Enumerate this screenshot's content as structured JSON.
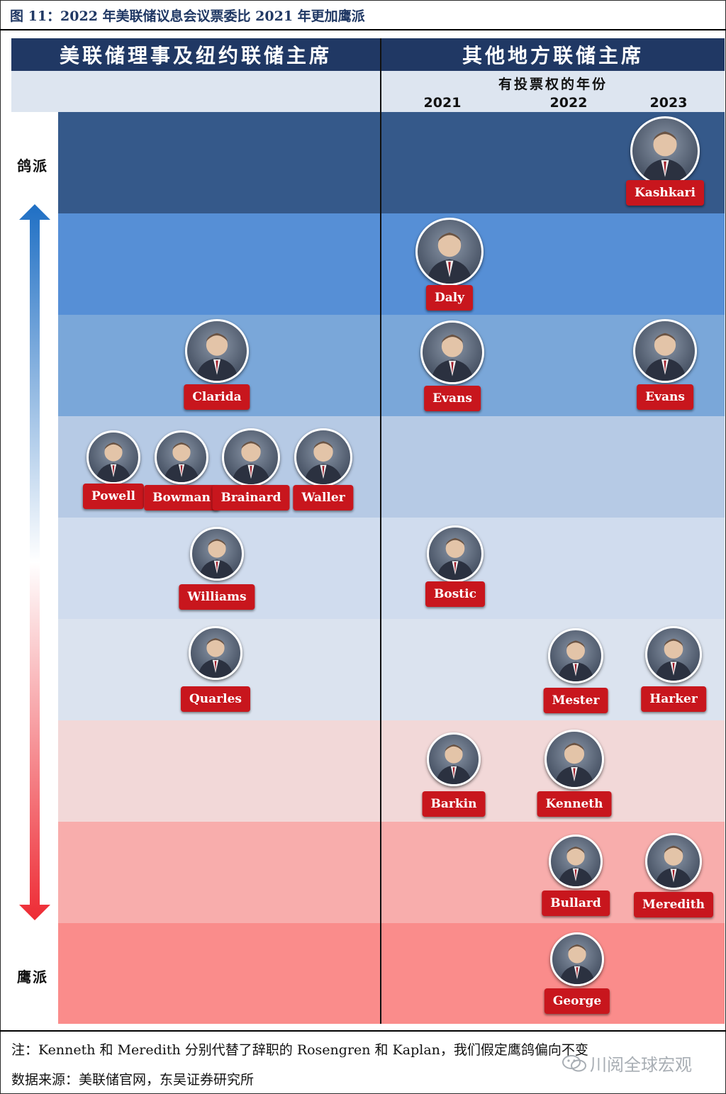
{
  "figure_title": "图 11：2022 年美联储议息会议票委比 2021 年更加鹰派",
  "header": {
    "left": "美联储理事及纽约联储主席",
    "right": "其他地方联储主席",
    "subtitle": "有投票权的年份",
    "years": [
      "2021",
      "2022",
      "2023"
    ]
  },
  "axis": {
    "top_label": "鸽派",
    "bottom_label": "鹰派",
    "colors": {
      "band_1": "#35598a",
      "band_2": "#568fd6",
      "band_3": "#7aa7d9",
      "band_4": "#b6cae5",
      "band_5": "#d0dcee",
      "band_6": "#dbe3ef",
      "band_7": "#f2d8d8",
      "band_8": "#f8adac",
      "band_9": "#fa8c8b",
      "tag": "#c8161d",
      "header": "#203864"
    }
  },
  "people": [
    {
      "name": "Kashkari",
      "icon": "portrait-icon"
    },
    {
      "name": "Daly",
      "icon": "portrait-icon"
    },
    {
      "name": "Clarida",
      "icon": "portrait-icon"
    },
    {
      "name": "Evans",
      "icon": "portrait-icon"
    },
    {
      "name": "Evans",
      "icon": "portrait-icon"
    },
    {
      "name": "Powell",
      "icon": "portrait-icon"
    },
    {
      "name": "Bowman",
      "icon": "portrait-icon"
    },
    {
      "name": "Brainard",
      "icon": "portrait-icon"
    },
    {
      "name": "Waller",
      "icon": "portrait-icon"
    },
    {
      "name": "Williams",
      "icon": "portrait-icon"
    },
    {
      "name": "Bostic",
      "icon": "portrait-icon"
    },
    {
      "name": "Quarles",
      "icon": "portrait-icon"
    },
    {
      "name": "Mester",
      "icon": "portrait-icon"
    },
    {
      "name": "Harker",
      "icon": "portrait-icon"
    },
    {
      "name": "Barkin",
      "icon": "portrait-icon"
    },
    {
      "name": "Kenneth",
      "icon": "portrait-icon"
    },
    {
      "name": "Bullard",
      "icon": "portrait-icon"
    },
    {
      "name": "Meredith",
      "icon": "portrait-icon"
    },
    {
      "name": "George",
      "icon": "portrait-icon"
    }
  ],
  "note": "注：Kenneth 和 Meredith 分别代替了辞职的 Rosengren 和 Kaplan，我们假定鹰鸽偏向不变",
  "source": "数据来源：美联储官网，东吴证券研究所",
  "watermark": "川阅全球宏观"
}
